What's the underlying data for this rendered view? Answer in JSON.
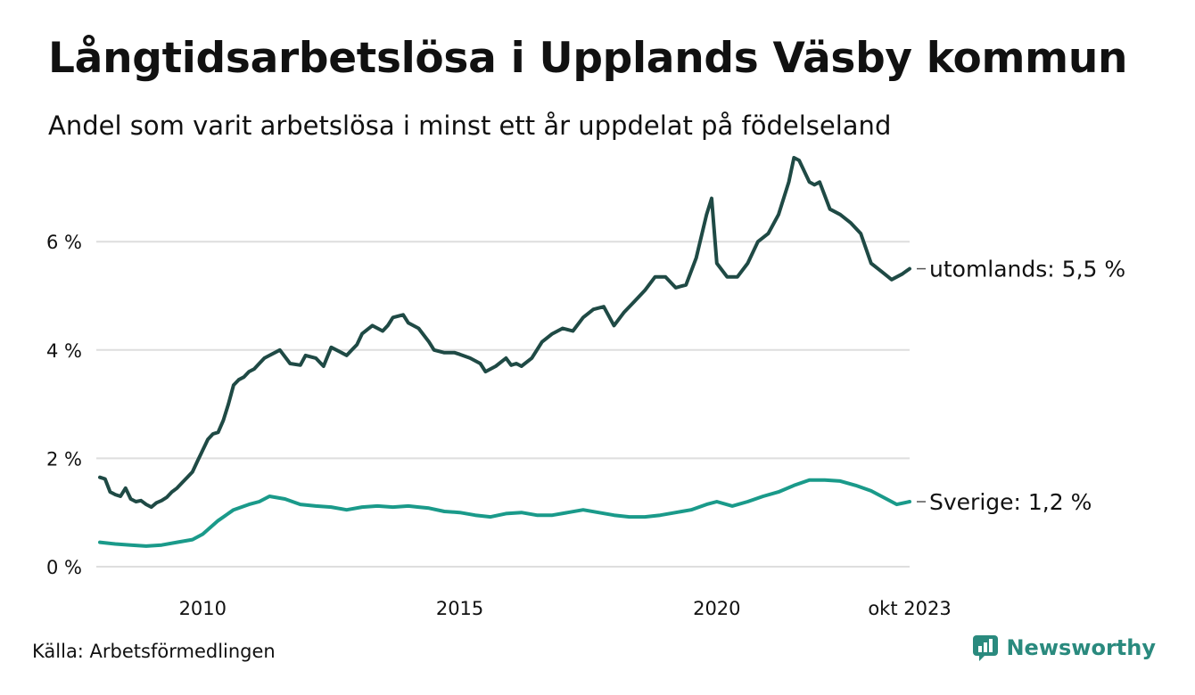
{
  "header": {
    "title": "Långtidsarbetslösa i Upplands Väsby kommun",
    "subtitle": "Andel som varit arbetslösa i minst ett år uppdelat på födelseland"
  },
  "footer": {
    "source": "Källa: Arbetsförmedlingen",
    "brand": "Newsworthy"
  },
  "colors": {
    "utomlands": "#1f4a45",
    "sverige": "#1a9a8a",
    "grid": "#dedede",
    "brand": "#2a8a7e"
  },
  "chart_data": {
    "type": "line",
    "title": "Långtidsarbetslösa i Upplands Väsby kommun",
    "xlabel": "",
    "ylabel": "",
    "xlim": [
      2008.0,
      2023.75
    ],
    "ylim": [
      0,
      7.5
    ],
    "y_ticks": [
      {
        "value": 0,
        "label": "0 %"
      },
      {
        "value": 2,
        "label": "2 %"
      },
      {
        "value": 4,
        "label": "4 %"
      },
      {
        "value": 6,
        "label": "6 %"
      }
    ],
    "x_ticks": [
      {
        "value": 2010,
        "label": "2010"
      },
      {
        "value": 2015,
        "label": "2015"
      },
      {
        "value": 2020,
        "label": "2020"
      },
      {
        "value": 2023.75,
        "label": "okt 2023"
      }
    ],
    "series": [
      {
        "name": "utomlands",
        "end_label": "utomlands: 5,5 %",
        "x": [
          2008.0,
          2008.1,
          2008.2,
          2008.3,
          2008.4,
          2008.5,
          2008.6,
          2008.7,
          2008.8,
          2008.9,
          2009.0,
          2009.1,
          2009.2,
          2009.3,
          2009.4,
          2009.5,
          2009.6,
          2009.7,
          2009.8,
          2009.9,
          2010.0,
          2010.1,
          2010.2,
          2010.3,
          2010.4,
          2010.5,
          2010.6,
          2010.7,
          2010.8,
          2010.9,
          2011.0,
          2011.1,
          2011.2,
          2011.3,
          2011.5,
          2011.7,
          2011.9,
          2012.0,
          2012.2,
          2012.35,
          2012.5,
          2012.7,
          2012.8,
          2012.9,
          2013.0,
          2013.1,
          2013.3,
          2013.5,
          2013.6,
          2013.7,
          2013.9,
          2014.0,
          2014.2,
          2014.4,
          2014.5,
          2014.7,
          2014.9,
          2015.0,
          2015.2,
          2015.4,
          2015.5,
          2015.7,
          2015.9,
          2016.0,
          2016.1,
          2016.2,
          2016.4,
          2016.6,
          2016.8,
          2017.0,
          2017.2,
          2017.4,
          2017.6,
          2017.8,
          2018.0,
          2018.2,
          2018.4,
          2018.6,
          2018.8,
          2019.0,
          2019.2,
          2019.4,
          2019.6,
          2019.8,
          2019.9,
          2020.0,
          2020.2,
          2020.4,
          2020.6,
          2020.8,
          2021.0,
          2021.2,
          2021.4,
          2021.5,
          2021.6,
          2021.8,
          2021.9,
          2022.0,
          2022.2,
          2022.4,
          2022.6,
          2022.8,
          2023.0,
          2023.2,
          2023.4,
          2023.6,
          2023.75
        ],
        "values": [
          1.65,
          1.62,
          1.38,
          1.33,
          1.3,
          1.45,
          1.25,
          1.2,
          1.22,
          1.15,
          1.1,
          1.18,
          1.22,
          1.28,
          1.38,
          1.45,
          1.55,
          1.65,
          1.75,
          1.95,
          2.15,
          2.35,
          2.45,
          2.48,
          2.7,
          3.0,
          3.35,
          3.45,
          3.5,
          3.6,
          3.65,
          3.75,
          3.85,
          3.9,
          4.0,
          3.75,
          3.72,
          3.9,
          3.85,
          3.7,
          4.05,
          3.95,
          3.9,
          4.0,
          4.1,
          4.3,
          4.45,
          4.35,
          4.45,
          4.6,
          4.65,
          4.5,
          4.4,
          4.15,
          4.0,
          3.95,
          3.95,
          3.92,
          3.85,
          3.75,
          3.6,
          3.7,
          3.85,
          3.72,
          3.75,
          3.7,
          3.85,
          4.15,
          4.3,
          4.4,
          4.35,
          4.6,
          4.75,
          4.8,
          4.45,
          4.7,
          4.9,
          5.1,
          5.35,
          5.35,
          5.15,
          5.2,
          5.7,
          6.5,
          6.8,
          5.6,
          5.35,
          5.35,
          5.6,
          6.0,
          6.15,
          6.5,
          7.1,
          7.55,
          7.5,
          7.1,
          7.05,
          7.1,
          6.6,
          6.5,
          6.35,
          6.15,
          5.6,
          5.45,
          5.3,
          5.4,
          5.5
        ]
      },
      {
        "name": "Sverige",
        "end_label": "Sverige: 1,2 %",
        "x": [
          2008.0,
          2008.3,
          2008.6,
          2008.9,
          2009.2,
          2009.5,
          2009.8,
          2010.0,
          2010.3,
          2010.6,
          2010.9,
          2011.1,
          2011.3,
          2011.6,
          2011.9,
          2012.2,
          2012.5,
          2012.8,
          2013.1,
          2013.4,
          2013.7,
          2014.0,
          2014.2,
          2014.4,
          2014.7,
          2015.0,
          2015.3,
          2015.6,
          2015.9,
          2016.2,
          2016.5,
          2016.8,
          2017.1,
          2017.4,
          2017.7,
          2018.0,
          2018.3,
          2018.6,
          2018.9,
          2019.2,
          2019.5,
          2019.8,
          2020.0,
          2020.3,
          2020.6,
          2020.9,
          2021.2,
          2021.5,
          2021.8,
          2022.1,
          2022.4,
          2022.7,
          2023.0,
          2023.3,
          2023.5,
          2023.75
        ],
        "values": [
          0.45,
          0.42,
          0.4,
          0.38,
          0.4,
          0.45,
          0.5,
          0.6,
          0.85,
          1.05,
          1.15,
          1.2,
          1.3,
          1.25,
          1.15,
          1.12,
          1.1,
          1.05,
          1.1,
          1.12,
          1.1,
          1.12,
          1.1,
          1.08,
          1.02,
          1.0,
          0.95,
          0.92,
          0.98,
          1.0,
          0.95,
          0.95,
          1.0,
          1.05,
          1.0,
          0.95,
          0.92,
          0.92,
          0.95,
          1.0,
          1.05,
          1.15,
          1.2,
          1.12,
          1.2,
          1.3,
          1.38,
          1.5,
          1.6,
          1.6,
          1.58,
          1.5,
          1.4,
          1.25,
          1.15,
          1.2
        ]
      }
    ]
  }
}
